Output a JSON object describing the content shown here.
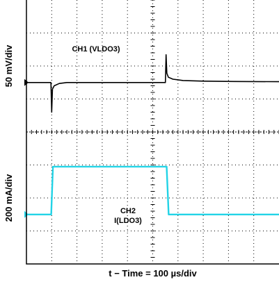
{
  "chart_data": {
    "type": "line",
    "title": "",
    "xlabel": "t − Time = 100 µs/div",
    "x_units": "µs",
    "xlim": [
      0,
      1000
    ],
    "grid": true,
    "grid_divisions": {
      "x": 10,
      "y": 8
    },
    "channels": [
      {
        "name": "CH1 (VLDO3)",
        "label_lines": [
          "CH1 (VLDO3)"
        ],
        "scale_label": "50 mV/div",
        "units": "mV",
        "color": "#000000",
        "baseline_div": 5.5,
        "points": [
          [
            0,
            0
          ],
          [
            97,
            0
          ],
          [
            100,
            -45
          ],
          [
            103,
            -10
          ],
          [
            110,
            -5
          ],
          [
            130,
            -1.5
          ],
          [
            160,
            0
          ],
          [
            550,
            0
          ],
          [
            553,
            42
          ],
          [
            556,
            14
          ],
          [
            562,
            8
          ],
          [
            580,
            5
          ],
          [
            620,
            3
          ],
          [
            700,
            2
          ],
          [
            820,
            1.5
          ],
          [
            1000,
            1.2
          ]
        ]
      },
      {
        "name": "CH2 I(LDO3)",
        "label_lines": [
          "CH2",
          "I(LDO3)"
        ],
        "scale_label": "200 mA/div",
        "units": "mA",
        "color": "#22d3e6",
        "baseline_div": 1.5,
        "points": [
          [
            0,
            0
          ],
          [
            98,
            0
          ],
          [
            105,
            290
          ],
          [
            555,
            290
          ],
          [
            563,
            0
          ],
          [
            1000,
            0
          ]
        ]
      }
    ]
  }
}
